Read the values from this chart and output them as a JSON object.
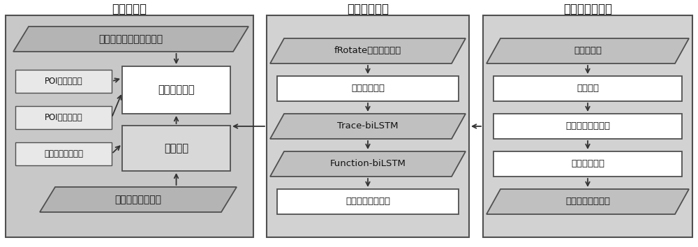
{
  "title1": "区功能标注",
  "title2": "区域功能表示",
  "title3": "细粒度区域划分",
  "panel1": {
    "top_para": "高清城市功能区识别方法",
    "left1": "POI的分布纯度",
    "left2": "POI的功能强度",
    "left3": "区域内的轨迹频率",
    "right_top": "区域功能标注",
    "right_bot": "区域聚类",
    "bot_para": "区域功能表示结果"
  },
  "panel2": [
    {
      "label": "fRotate全局表示模型",
      "shape": "para"
    },
    {
      "label": "静态功能表示",
      "shape": "rect"
    },
    {
      "label": "Trace-biLSTM",
      "shape": "para"
    },
    {
      "label": "Function-biLSTM",
      "shape": "para"
    },
    {
      "label": "动态区域功能表示",
      "shape": "rect"
    }
  ],
  "panel3": [
    {
      "label": "城市道路网",
      "shape": "para"
    },
    {
      "label": "地图分割",
      "shape": "rect"
    },
    {
      "label": "细粒度空间子区域",
      "shape": "rect"
    },
    {
      "label": "人群移动轨迹",
      "shape": "rect"
    },
    {
      "label": "区域功能表示模型",
      "shape": "para"
    }
  ],
  "bg1": "#c8c8c8",
  "bg23": "#d2d2d2",
  "box_white": "#ffffff",
  "box_gray": "#d8d8d8",
  "box_para_dark": "#c0c0c0",
  "box_para_top": "#b4b4b4",
  "box_left": "#e8e8e8",
  "edge": "#505050",
  "arrow": "#333333"
}
